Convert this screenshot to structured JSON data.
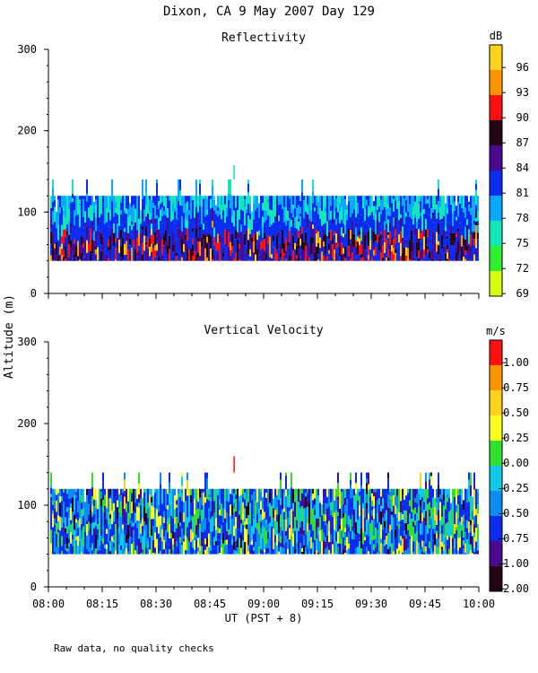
{
  "figure": {
    "title": "Dixon, CA  9 May 2007  Day 129",
    "ylabel": "Altitude (m)",
    "xlabel": "UT  (PST + 8)",
    "footnote": "Raw data, no quality checks"
  },
  "chart_data": [
    {
      "type": "heatmap",
      "title": "Reflectivity",
      "ylabel": "Altitude (m)",
      "xlabel": "UT  (PST + 8)",
      "x_ticks": [
        "08:00",
        "08:15",
        "08:30",
        "08:45",
        "09:00",
        "09:15",
        "09:30",
        "09:45",
        "10:00"
      ],
      "xlim": [
        "08:00",
        "10:00"
      ],
      "ylim": [
        0,
        300
      ],
      "y_ticks": [
        0,
        100,
        200,
        300
      ],
      "colorbar": {
        "unit": "dB",
        "labels": [
          96,
          93,
          90,
          87,
          84,
          81,
          78,
          75,
          72,
          69
        ],
        "colors": [
          "#ffd21c",
          "#ff9500",
          "#ff1010",
          "#250515",
          "#4a0a90",
          "#0a2cf0",
          "#0aa8ff",
          "#10e8b8",
          "#30f030",
          "#d8ff10"
        ]
      },
      "data_extent": {
        "altitude_min": 40,
        "altitude_max_typical": 120,
        "altitude_max_spikes": 140,
        "altitude_peak": 158
      },
      "palette": [
        "#0a2cf0",
        "#0aa8ff",
        "#10e8b8",
        "#4a0a90",
        "#250515",
        "#ff1010",
        "#ff9500",
        "#ffd21c"
      ]
    },
    {
      "type": "heatmap",
      "title": "Vertical Velocity",
      "ylabel": "Altitude (m)",
      "xlabel": "UT  (PST + 8)",
      "x_ticks": [
        "08:00",
        "08:15",
        "08:30",
        "08:45",
        "09:00",
        "09:15",
        "09:30",
        "09:45",
        "10:00"
      ],
      "xlim": [
        "08:00",
        "10:00"
      ],
      "ylim": [
        0,
        300
      ],
      "y_ticks": [
        0,
        100,
        200,
        300
      ],
      "colorbar": {
        "unit": "m/s",
        "labels": [
          "1.00",
          "0.75",
          "0.50",
          "0.25",
          "0.00",
          "-0.25",
          "-0.50",
          "-0.75",
          "-1.00",
          "-2.00"
        ],
        "colors": [
          "#ff1010",
          "#ff9500",
          "#ffd21c",
          "#ffff20",
          "#30e030",
          "#10c8e8",
          "#0a8cf0",
          "#0a2cf0",
          "#4a0a90",
          "#250515"
        ]
      },
      "data_extent": {
        "altitude_min": 40,
        "altitude_max_typical": 120,
        "altitude_max_spikes": 140,
        "altitude_peak": 160
      },
      "palette": [
        "#0a2cf0",
        "#0a8cf0",
        "#10c8e8",
        "#30e030",
        "#ffff20",
        "#4a0a90",
        "#250515",
        "#ffd21c"
      ]
    }
  ]
}
